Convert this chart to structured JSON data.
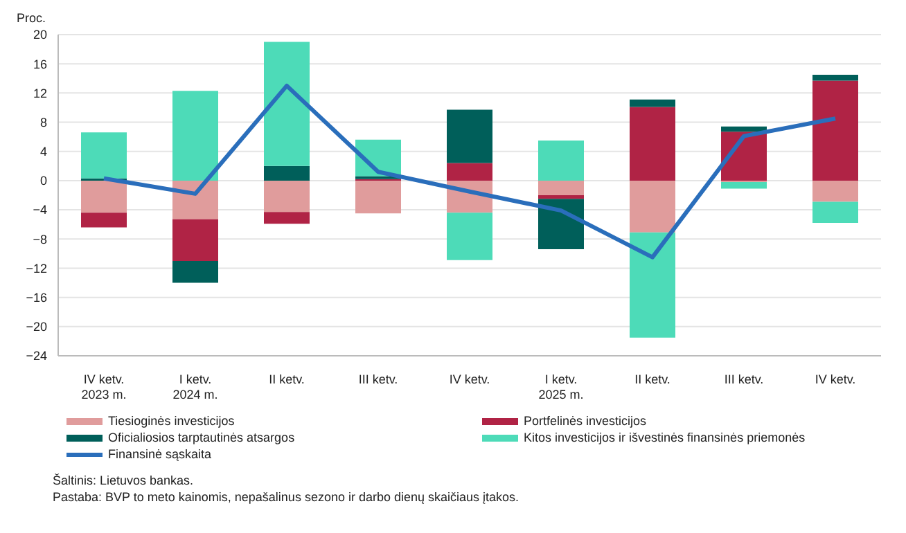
{
  "chart_data": {
    "type": "bar",
    "stacked": true,
    "ylabel": "Proc.",
    "categories": [
      "IV ketv.\n2023 m.",
      "I ketv.\n2024 m.",
      "II ketv.",
      "III ketv.",
      "IV ketv.",
      "I ketv.\n2025 m.",
      "II ketv.",
      "III ketv.",
      "IV ketv."
    ],
    "series": [
      {
        "name": "Tiesioginės investicijos",
        "color": "#e09c9c",
        "values": [
          -4.4,
          -5.3,
          -4.3,
          -4.5,
          -4.4,
          -2.0,
          -7.1,
          -0.2,
          -2.9
        ]
      },
      {
        "name": "Portfelinės investicijos",
        "color": "#b02345",
        "values": [
          -2.0,
          -5.7,
          -1.6,
          0.2,
          2.4,
          -0.5,
          10.1,
          6.7,
          13.7
        ]
      },
      {
        "name": "Oficialiosios tarptautinės atsargos",
        "color": "#005f5a",
        "values": [
          0.3,
          -3.0,
          2.0,
          0.4,
          7.3,
          -6.9,
          1.0,
          0.7,
          0.8
        ]
      },
      {
        "name": "Kitos investicijos ir išvestinės finansinės priemonės",
        "color": "#4ddbb8",
        "values": [
          6.3,
          12.3,
          17.0,
          5.0,
          -6.5,
          5.5,
          -14.4,
          -0.9,
          -2.9
        ]
      },
      {
        "name": "Finansinė sąskaita",
        "type": "line",
        "color": "#2a6ebb",
        "values": [
          0.3,
          -1.8,
          13.0,
          1.2,
          -1.5,
          -4.1,
          -10.5,
          6.1,
          8.5
        ]
      }
    ],
    "ylim": [
      -24,
      20
    ],
    "yticks": [
      {
        "value": -24,
        "label": "−24"
      },
      {
        "value": -20,
        "label": "−20"
      },
      {
        "value": -16,
        "label": "−16"
      },
      {
        "value": -12,
        "label": "−12"
      },
      {
        "value": -8,
        "label": "−8"
      },
      {
        "value": -4,
        "label": "−4"
      },
      0,
      4,
      8,
      12,
      16,
      20
    ],
    "grid": "y",
    "legend": "bottom",
    "marker": "none",
    "annotations": [
      "Šaltinis: Lietuvos bankas.",
      "Pastaba: BVP to meto kainomis, nepašalinus sezono ir darbo dienų skaičiaus įtakos."
    ]
  }
}
